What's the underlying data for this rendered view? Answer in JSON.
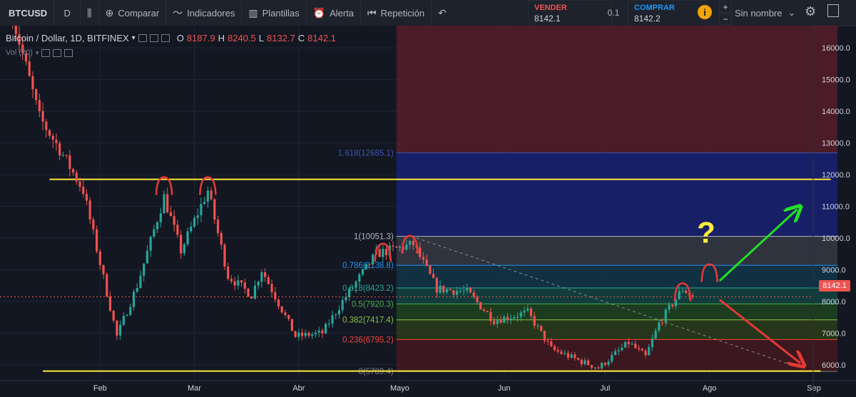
{
  "toolbar": {
    "symbol": "BTCUSD",
    "interval": "D",
    "compare": "Comparar",
    "indicators": "Indicadores",
    "templates": "Plantillas",
    "alert": "Alerta",
    "replay": "Repetición",
    "sell_label": "VENDER",
    "sell_price": "8142.1",
    "qty": "0.1",
    "buy_label": "COMPRAR",
    "buy_price": "8142.2",
    "layout_name": "Sin nombre",
    "plus": "+",
    "minus": "−",
    "warning": "i"
  },
  "legend": {
    "title": "Bitcoin / Dollar, 1D, BITFINEX",
    "o_label": "O",
    "o": "8187.9",
    "h_label": "H",
    "h": "8240.5",
    "l_label": "L",
    "l": "8132.7",
    "c_label": "C",
    "c": "8142.1",
    "vol": "Vol (20)"
  },
  "chart_data": {
    "type": "candlestick",
    "symbol": "BTCUSD",
    "exchange": "BITFINEX",
    "timeframe": "1D",
    "ylim": [
      5500,
      16700
    ],
    "y_ticks": [
      "16000.0",
      "15000.0",
      "14000.0",
      "13000.0",
      "12000.0",
      "11000.0",
      "10000.0",
      "9000.0",
      "8000.0",
      "7000.0",
      "6000.0"
    ],
    "x_ticks": [
      "Feb",
      "Mar",
      "Abr",
      "Mayo",
      "Jun",
      "Jul",
      "Ago",
      "Sep"
    ],
    "last_price": 8142.1,
    "last_price_label": "8142.1",
    "key_points": [
      {
        "date": "2018-01-06",
        "price": 17000
      },
      {
        "date": "2018-01-14",
        "price": 13800
      },
      {
        "date": "2018-01-20",
        "price": 12800
      },
      {
        "date": "2018-01-27",
        "price": 11500
      },
      {
        "date": "2018-02-06",
        "price": 6900
      },
      {
        "date": "2018-02-12",
        "price": 8500
      },
      {
        "date": "2018-02-20",
        "price": 11300
      },
      {
        "date": "2018-02-25",
        "price": 9600
      },
      {
        "date": "2018-03-05",
        "price": 11500
      },
      {
        "date": "2018-03-11",
        "price": 8800
      },
      {
        "date": "2018-03-18",
        "price": 8200
      },
      {
        "date": "2018-03-21",
        "price": 9000
      },
      {
        "date": "2018-03-31",
        "price": 6900
      },
      {
        "date": "2018-04-08",
        "price": 7000
      },
      {
        "date": "2018-04-14",
        "price": 8000
      },
      {
        "date": "2018-04-24",
        "price": 9500
      },
      {
        "date": "2018-05-05",
        "price": 9800
      },
      {
        "date": "2018-05-12",
        "price": 8400
      },
      {
        "date": "2018-05-21",
        "price": 8300
      },
      {
        "date": "2018-05-29",
        "price": 7400
      },
      {
        "date": "2018-06-08",
        "price": 7650
      },
      {
        "date": "2018-06-15",
        "price": 6500
      },
      {
        "date": "2018-06-24",
        "price": 6100
      },
      {
        "date": "2018-06-29",
        "price": 5900
      },
      {
        "date": "2018-07-08",
        "price": 6700
      },
      {
        "date": "2018-07-13",
        "price": 6250
      },
      {
        "date": "2018-07-17",
        "price": 7300
      },
      {
        "date": "2018-07-24",
        "price": 8400
      },
      {
        "date": "2018-07-27",
        "price": 8142
      }
    ],
    "fib_levels": [
      {
        "label": "1.618(12685.1)",
        "value": 12685.1,
        "color": "#3f51b5"
      },
      {
        "label": "1(10051.3)",
        "value": 10051.3,
        "color": "#b2b5be"
      },
      {
        "label": "0.786(9138.8)",
        "value": 9138.8,
        "color": "#2196f3"
      },
      {
        "label": "0.618(8423.2)",
        "value": 8423.2,
        "color": "#26a69a"
      },
      {
        "label": "0.5(7920.3)",
        "value": 7920.3,
        "color": "#4caf50"
      },
      {
        "label": "0.382(7417.4)",
        "value": 7417.4,
        "color": "#8bc34a"
      },
      {
        "label": "0.236(6795.2)",
        "value": 6795.2,
        "color": "#f44336"
      },
      {
        "label": "0(5789.4)",
        "value": 5789.4,
        "color": "#787b86"
      }
    ],
    "horizontal_lines": [
      {
        "value": 11850,
        "color": "#ffeb3b"
      },
      {
        "value": 5800,
        "color": "#ffeb3b"
      }
    ],
    "annotation": "?"
  }
}
